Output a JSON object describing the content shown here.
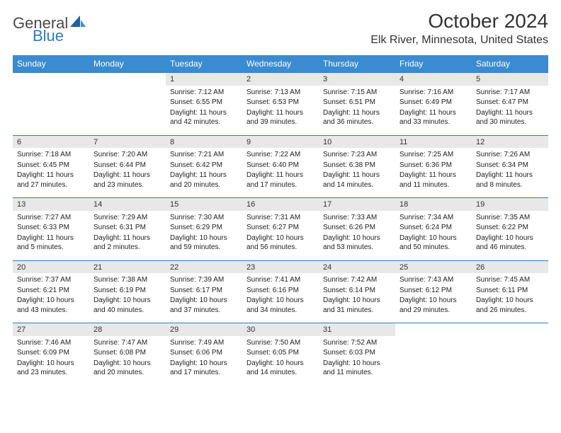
{
  "brand": {
    "general": "General",
    "blue": "Blue"
  },
  "title": "October 2024",
  "location": "Elk River, Minnesota, United States",
  "colors": {
    "header_bg": "#3b8bd0",
    "header_text": "#ffffff",
    "row_sep": "#2e7cc0",
    "daynum_bg": "#e8e8e8",
    "body_bg": "#ffffff"
  },
  "weekday_headers": [
    "Sunday",
    "Monday",
    "Tuesday",
    "Wednesday",
    "Thursday",
    "Friday",
    "Saturday"
  ],
  "weeks": [
    [
      null,
      null,
      {
        "day": "1",
        "sunrise": "Sunrise: 7:12 AM",
        "sunset": "Sunset: 6:55 PM",
        "daylight": "Daylight: 11 hours and 42 minutes."
      },
      {
        "day": "2",
        "sunrise": "Sunrise: 7:13 AM",
        "sunset": "Sunset: 6:53 PM",
        "daylight": "Daylight: 11 hours and 39 minutes."
      },
      {
        "day": "3",
        "sunrise": "Sunrise: 7:15 AM",
        "sunset": "Sunset: 6:51 PM",
        "daylight": "Daylight: 11 hours and 36 minutes."
      },
      {
        "day": "4",
        "sunrise": "Sunrise: 7:16 AM",
        "sunset": "Sunset: 6:49 PM",
        "daylight": "Daylight: 11 hours and 33 minutes."
      },
      {
        "day": "5",
        "sunrise": "Sunrise: 7:17 AM",
        "sunset": "Sunset: 6:47 PM",
        "daylight": "Daylight: 11 hours and 30 minutes."
      }
    ],
    [
      {
        "day": "6",
        "sunrise": "Sunrise: 7:18 AM",
        "sunset": "Sunset: 6:45 PM",
        "daylight": "Daylight: 11 hours and 27 minutes."
      },
      {
        "day": "7",
        "sunrise": "Sunrise: 7:20 AM",
        "sunset": "Sunset: 6:44 PM",
        "daylight": "Daylight: 11 hours and 23 minutes."
      },
      {
        "day": "8",
        "sunrise": "Sunrise: 7:21 AM",
        "sunset": "Sunset: 6:42 PM",
        "daylight": "Daylight: 11 hours and 20 minutes."
      },
      {
        "day": "9",
        "sunrise": "Sunrise: 7:22 AM",
        "sunset": "Sunset: 6:40 PM",
        "daylight": "Daylight: 11 hours and 17 minutes."
      },
      {
        "day": "10",
        "sunrise": "Sunrise: 7:23 AM",
        "sunset": "Sunset: 6:38 PM",
        "daylight": "Daylight: 11 hours and 14 minutes."
      },
      {
        "day": "11",
        "sunrise": "Sunrise: 7:25 AM",
        "sunset": "Sunset: 6:36 PM",
        "daylight": "Daylight: 11 hours and 11 minutes."
      },
      {
        "day": "12",
        "sunrise": "Sunrise: 7:26 AM",
        "sunset": "Sunset: 6:34 PM",
        "daylight": "Daylight: 11 hours and 8 minutes."
      }
    ],
    [
      {
        "day": "13",
        "sunrise": "Sunrise: 7:27 AM",
        "sunset": "Sunset: 6:33 PM",
        "daylight": "Daylight: 11 hours and 5 minutes."
      },
      {
        "day": "14",
        "sunrise": "Sunrise: 7:29 AM",
        "sunset": "Sunset: 6:31 PM",
        "daylight": "Daylight: 11 hours and 2 minutes."
      },
      {
        "day": "15",
        "sunrise": "Sunrise: 7:30 AM",
        "sunset": "Sunset: 6:29 PM",
        "daylight": "Daylight: 10 hours and 59 minutes."
      },
      {
        "day": "16",
        "sunrise": "Sunrise: 7:31 AM",
        "sunset": "Sunset: 6:27 PM",
        "daylight": "Daylight: 10 hours and 56 minutes."
      },
      {
        "day": "17",
        "sunrise": "Sunrise: 7:33 AM",
        "sunset": "Sunset: 6:26 PM",
        "daylight": "Daylight: 10 hours and 53 minutes."
      },
      {
        "day": "18",
        "sunrise": "Sunrise: 7:34 AM",
        "sunset": "Sunset: 6:24 PM",
        "daylight": "Daylight: 10 hours and 50 minutes."
      },
      {
        "day": "19",
        "sunrise": "Sunrise: 7:35 AM",
        "sunset": "Sunset: 6:22 PM",
        "daylight": "Daylight: 10 hours and 46 minutes."
      }
    ],
    [
      {
        "day": "20",
        "sunrise": "Sunrise: 7:37 AM",
        "sunset": "Sunset: 6:21 PM",
        "daylight": "Daylight: 10 hours and 43 minutes."
      },
      {
        "day": "21",
        "sunrise": "Sunrise: 7:38 AM",
        "sunset": "Sunset: 6:19 PM",
        "daylight": "Daylight: 10 hours and 40 minutes."
      },
      {
        "day": "22",
        "sunrise": "Sunrise: 7:39 AM",
        "sunset": "Sunset: 6:17 PM",
        "daylight": "Daylight: 10 hours and 37 minutes."
      },
      {
        "day": "23",
        "sunrise": "Sunrise: 7:41 AM",
        "sunset": "Sunset: 6:16 PM",
        "daylight": "Daylight: 10 hours and 34 minutes."
      },
      {
        "day": "24",
        "sunrise": "Sunrise: 7:42 AM",
        "sunset": "Sunset: 6:14 PM",
        "daylight": "Daylight: 10 hours and 31 minutes."
      },
      {
        "day": "25",
        "sunrise": "Sunrise: 7:43 AM",
        "sunset": "Sunset: 6:12 PM",
        "daylight": "Daylight: 10 hours and 29 minutes."
      },
      {
        "day": "26",
        "sunrise": "Sunrise: 7:45 AM",
        "sunset": "Sunset: 6:11 PM",
        "daylight": "Daylight: 10 hours and 26 minutes."
      }
    ],
    [
      {
        "day": "27",
        "sunrise": "Sunrise: 7:46 AM",
        "sunset": "Sunset: 6:09 PM",
        "daylight": "Daylight: 10 hours and 23 minutes."
      },
      {
        "day": "28",
        "sunrise": "Sunrise: 7:47 AM",
        "sunset": "Sunset: 6:08 PM",
        "daylight": "Daylight: 10 hours and 20 minutes."
      },
      {
        "day": "29",
        "sunrise": "Sunrise: 7:49 AM",
        "sunset": "Sunset: 6:06 PM",
        "daylight": "Daylight: 10 hours and 17 minutes."
      },
      {
        "day": "30",
        "sunrise": "Sunrise: 7:50 AM",
        "sunset": "Sunset: 6:05 PM",
        "daylight": "Daylight: 10 hours and 14 minutes."
      },
      {
        "day": "31",
        "sunrise": "Sunrise: 7:52 AM",
        "sunset": "Sunset: 6:03 PM",
        "daylight": "Daylight: 10 hours and 11 minutes."
      },
      null,
      null
    ]
  ]
}
